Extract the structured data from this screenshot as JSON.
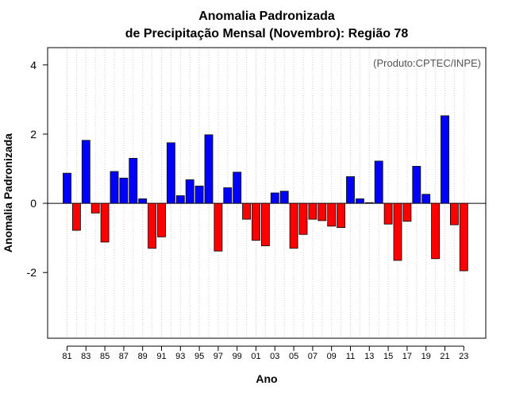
{
  "chart_data": {
    "type": "bar",
    "title": "Anomalia Padronizada",
    "subtitle": "de Precipitação Mensal (Novembro): Região 78",
    "xlabel": "Ano",
    "ylabel": "Anomalia Padronizada",
    "annotation": "(Produto:CPTEC/INPE)",
    "ylim": [
      -3.9,
      4.5
    ],
    "yticks": [
      -2,
      0,
      2,
      4
    ],
    "yticklabels": [
      "-2",
      "0",
      "2",
      "4"
    ],
    "xticklabels": [
      "81",
      "83",
      "85",
      "87",
      "89",
      "91",
      "93",
      "95",
      "97",
      "99",
      "01",
      "03",
      "05",
      "07",
      "09",
      "11",
      "13",
      "15",
      "17",
      "19",
      "21",
      "23"
    ],
    "grid": "vertical dotted",
    "positive_color": "#0000ff",
    "negative_color": "#ff0000",
    "categories": [
      "1981",
      "1982",
      "1983",
      "1984",
      "1985",
      "1986",
      "1987",
      "1988",
      "1989",
      "1990",
      "1991",
      "1992",
      "1993",
      "1994",
      "1995",
      "1996",
      "1997",
      "1998",
      "1999",
      "2000",
      "2001",
      "2002",
      "2003",
      "2004",
      "2005",
      "2006",
      "2007",
      "2008",
      "2009",
      "2010",
      "2011",
      "2012",
      "2013",
      "2014",
      "2015",
      "2016",
      "2017",
      "2018",
      "2019",
      "2020",
      "2021",
      "2022",
      "2023"
    ],
    "values": [
      0.87,
      -0.78,
      1.82,
      -0.28,
      -1.12,
      0.92,
      0.73,
      1.3,
      0.13,
      -1.3,
      -0.97,
      1.75,
      0.22,
      0.68,
      0.5,
      1.98,
      -1.38,
      0.45,
      0.9,
      -0.46,
      -1.07,
      -1.23,
      0.3,
      0.35,
      -1.3,
      -0.9,
      -0.46,
      -0.5,
      -0.66,
      -0.7,
      0.77,
      0.13,
      0.02,
      1.22,
      -0.6,
      -1.65,
      -0.52,
      1.07,
      0.26,
      -1.6,
      2.53,
      -0.62,
      -1.95
    ]
  }
}
